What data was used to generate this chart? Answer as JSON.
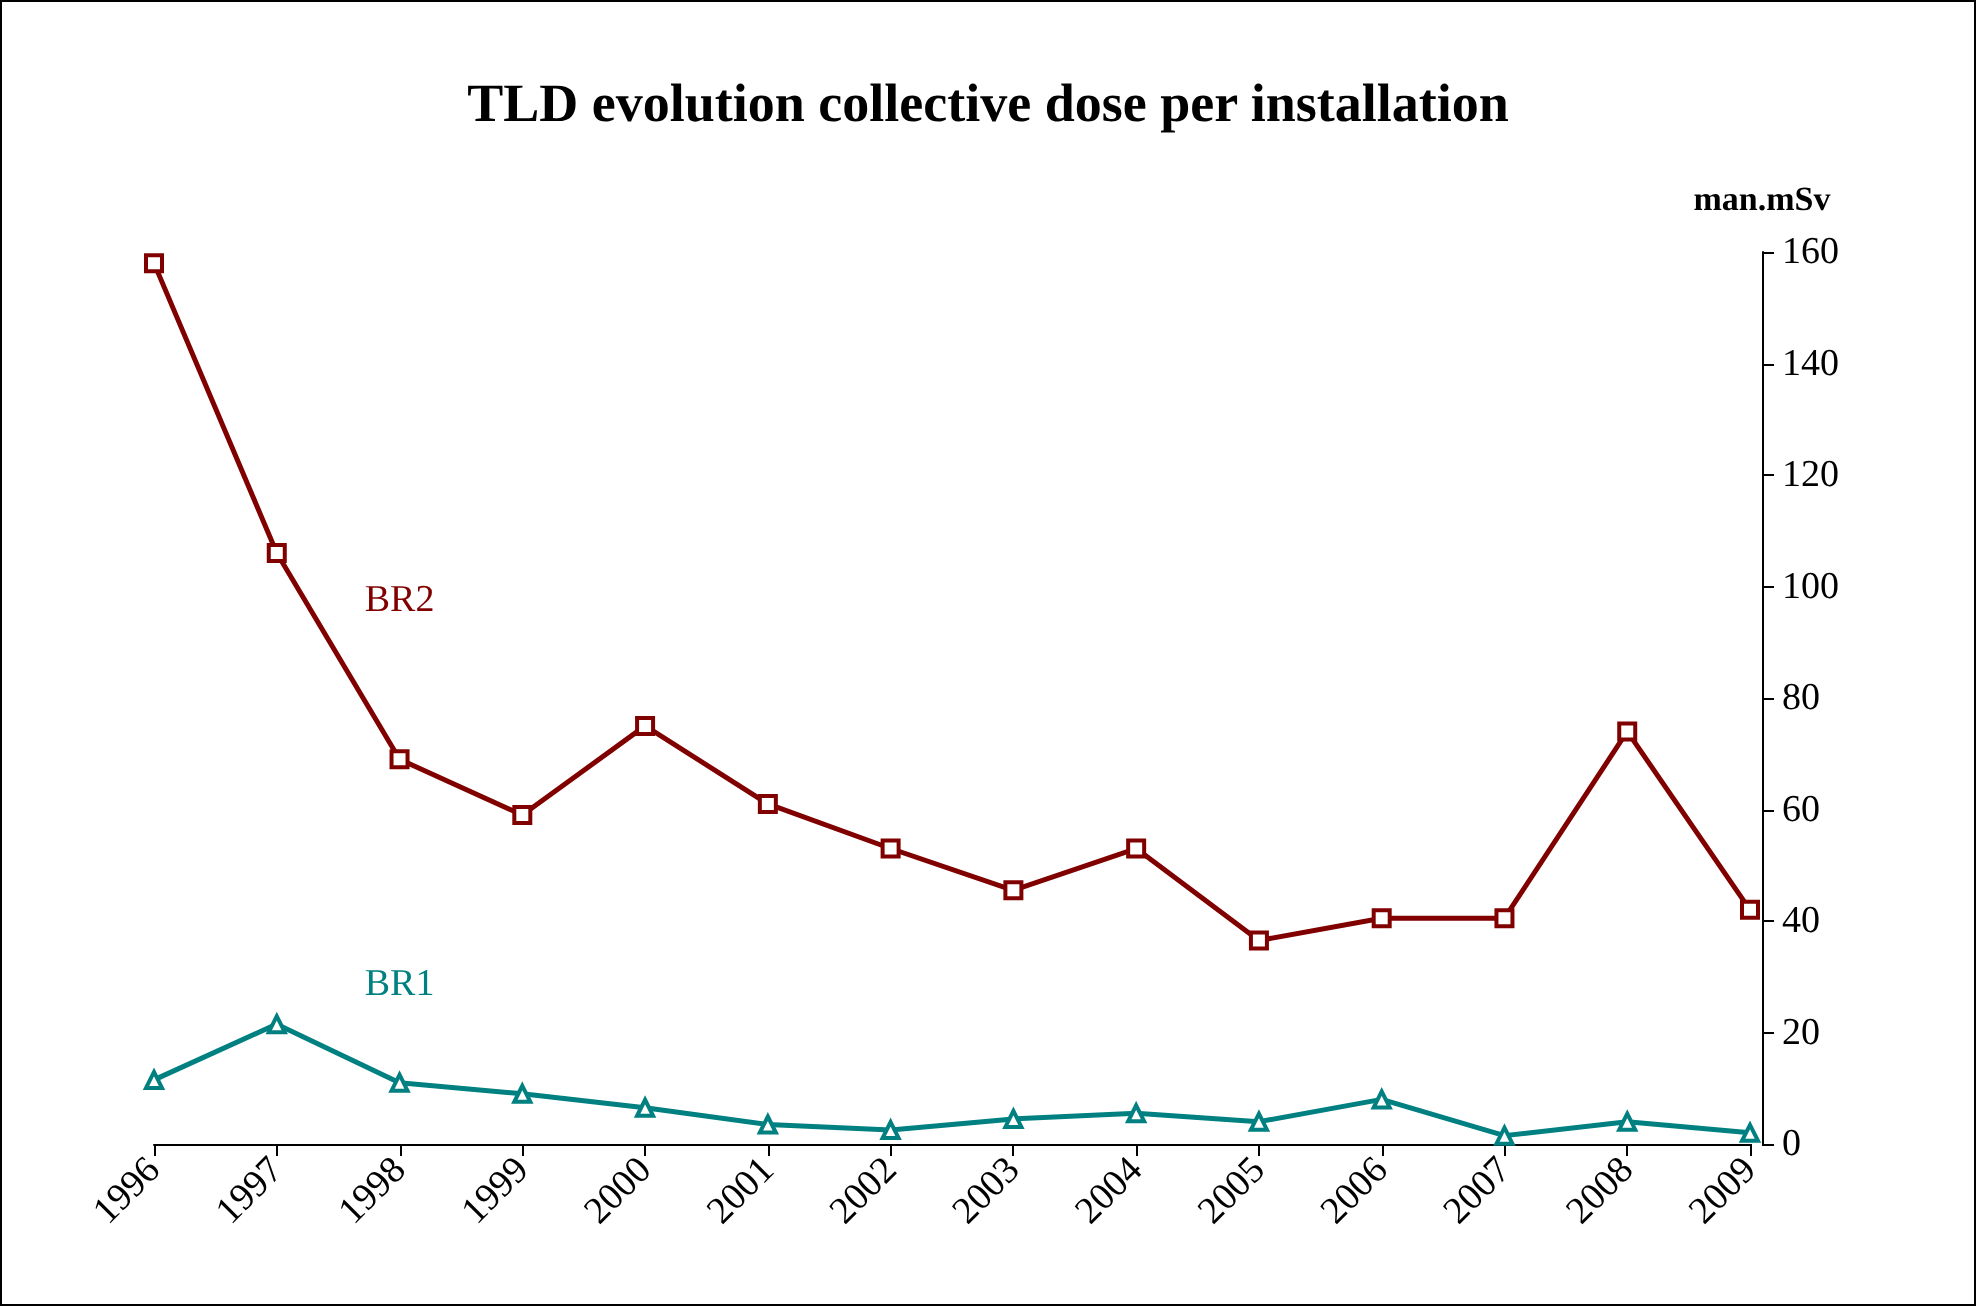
{
  "chart_data": {
    "type": "line",
    "title": "TLD evolution collective dose per installation",
    "ylabel": "man.mSv",
    "categories": [
      "1996",
      "1997",
      "1998",
      "1999",
      "2000",
      "2001",
      "2002",
      "2003",
      "2004",
      "2005",
      "2006",
      "2007",
      "2008",
      "2009"
    ],
    "series": [
      {
        "name": "BR2",
        "color": "#800000",
        "marker": "square",
        "values": [
          158,
          106,
          69,
          59,
          75,
          61,
          53,
          45.5,
          53,
          36.5,
          40.5,
          40.5,
          74,
          42
        ]
      },
      {
        "name": "BR1",
        "color": "#008080",
        "marker": "triangle",
        "values": [
          11.5,
          21.5,
          11,
          9,
          6.5,
          3.5,
          2.5,
          4.5,
          5.5,
          4,
          8,
          1.5,
          4,
          2
        ]
      }
    ],
    "ylim": [
      0,
      160
    ],
    "yticks": [
      0,
      20,
      40,
      60,
      80,
      100,
      120,
      140,
      160
    ],
    "grid": false,
    "legend": false,
    "line_style": "solid"
  }
}
